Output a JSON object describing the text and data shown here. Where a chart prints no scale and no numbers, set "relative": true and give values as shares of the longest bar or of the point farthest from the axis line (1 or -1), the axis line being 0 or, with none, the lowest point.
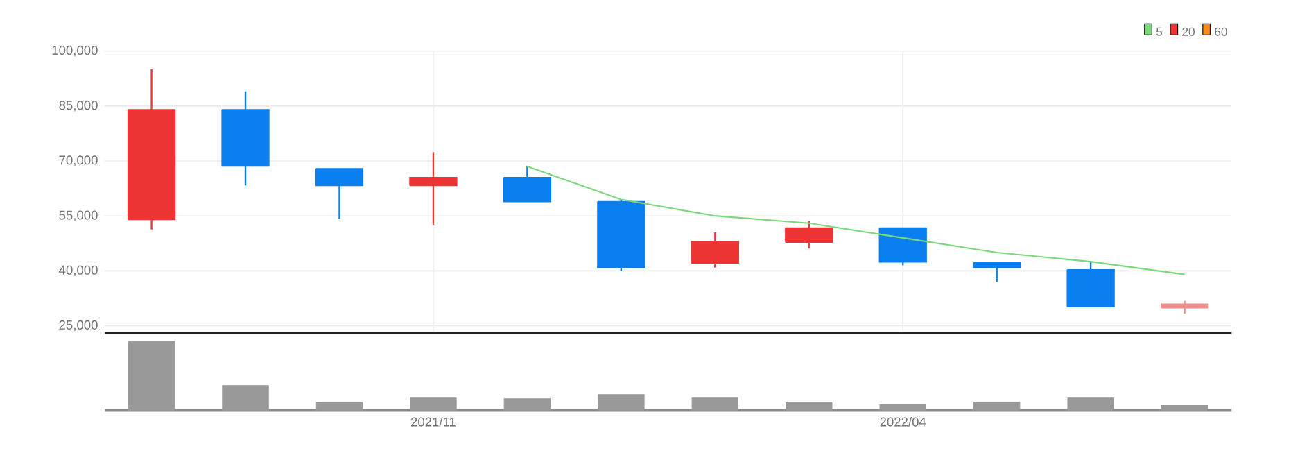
{
  "chart_data": [
    {
      "type": "candlestick",
      "categories": [
        null,
        null,
        null,
        "2021/11",
        null,
        null,
        null,
        null,
        "2022/04",
        null,
        null,
        null
      ],
      "ohlc": [
        [
          54000,
          95000,
          51300,
          84000
        ],
        [
          84000,
          89000,
          63300,
          68600
        ],
        [
          67900,
          67900,
          54200,
          63300
        ],
        [
          63300,
          72400,
          52600,
          65500
        ],
        [
          65500,
          68600,
          58900,
          58900
        ],
        [
          58900,
          59500,
          39900,
          40900
        ],
        [
          42100,
          50500,
          40900,
          48000
        ],
        [
          47800,
          53600,
          46100,
          51700
        ],
        [
          51700,
          51700,
          41500,
          42400
        ],
        [
          42200,
          42200,
          37000,
          40900
        ],
        [
          40300,
          42700,
          30200,
          30200
        ],
        [
          29900,
          31800,
          28300,
          30900
        ]
      ],
      "colors": [
        "#ee3535",
        "#0a7ff0",
        "#0a7ff0",
        "#ee3535",
        "#0a7ff0",
        "#0a7ff0",
        "#ee3535",
        "#ee3535",
        "#0a7ff0",
        "#0a7ff0",
        "#0a7ff0",
        "#f08c8c"
      ],
      "series": [
        {
          "name": "5",
          "type": "line",
          "color": "#7cd87c",
          "values": [
            null,
            null,
            null,
            null,
            68500,
            59500,
            55000,
            53000,
            49000,
            45000,
            42500,
            39000
          ]
        },
        {
          "name": "20",
          "type": "line",
          "color": "#ee3535",
          "values": [
            null,
            null,
            null,
            null,
            null,
            null,
            null,
            null,
            null,
            null,
            null,
            null
          ]
        },
        {
          "name": "60",
          "type": "line",
          "color": "#ff8c1a",
          "values": [
            null,
            null,
            null,
            null,
            null,
            null,
            null,
            null,
            null,
            null,
            null,
            null
          ]
        }
      ],
      "ylim": [
        23000,
        100000
      ],
      "yticks": [
        {
          "value": 25000,
          "label": "25,000"
        },
        {
          "value": 40000,
          "label": "40,000"
        },
        {
          "value": 55000,
          "label": "55,000"
        },
        {
          "value": 70000,
          "label": "70,000"
        },
        {
          "value": 85000,
          "label": "85,000"
        },
        {
          "value": 100000,
          "label": "100,000"
        }
      ],
      "grid": true,
      "legend": "top right",
      "tick_labels": "y"
    },
    {
      "type": "bar",
      "relative": true,
      "categories": [
        null,
        null,
        null,
        "2021/11",
        null,
        null,
        null,
        null,
        "2022/04",
        null,
        null,
        null
      ],
      "values": [
        1,
        0.36,
        0.12,
        0.18,
        0.17,
        0.23,
        0.18,
        0.11,
        0.08,
        0.12,
        0.18,
        0.07
      ],
      "color": "#999999",
      "grid": false,
      "tick_labels": "x"
    }
  ]
}
